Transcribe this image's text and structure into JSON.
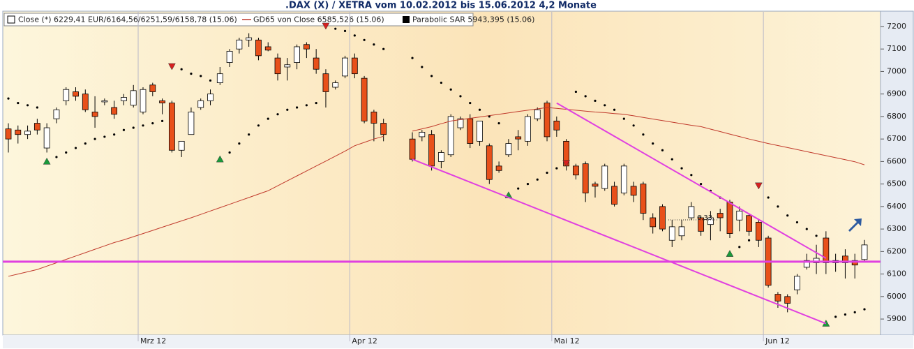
{
  "chart_data": {
    "type": "candlestick",
    "title": ".DAX (X) / XETRA vom 10.02.2012 bis 15.06.2012 4,2 Monate",
    "categories": [
      null,
      null,
      null,
      null,
      null,
      null,
      null,
      null,
      null,
      null,
      null,
      null,
      null,
      null,
      "Mrz 12",
      null,
      null,
      null,
      null,
      null,
      null,
      null,
      null,
      null,
      null,
      null,
      null,
      null,
      null,
      null,
      null,
      null,
      null,
      null,
      null,
      null,
      "Apr 12",
      null,
      null,
      null,
      null,
      null,
      null,
      null,
      null,
      null,
      null,
      null,
      null,
      null,
      null,
      null,
      null,
      null,
      null,
      null,
      null,
      "Mai 12",
      null,
      null,
      null,
      null,
      null,
      null,
      null,
      null,
      null,
      null,
      null,
      null,
      null,
      null,
      null,
      null,
      null,
      null,
      null,
      null,
      null,
      "Jun 12",
      null,
      null,
      null,
      null,
      null,
      null,
      null,
      null,
      null,
      null
    ],
    "series": [
      {
        "name": "Close (*) 6229,41 EUR/6164,56/6251,59/6158,78 (15.06)",
        "up_color": "#ffffff",
        "down_color": "#e8501a",
        "open": [
          6745,
          6740,
          6720,
          6770,
          6660,
          6790,
          6870,
          6910,
          6900,
          6820,
          6865,
          6840,
          6870,
          6850,
          6820,
          6940,
          6870,
          6860,
          6650,
          6720,
          6840,
          6870,
          6950,
          7040,
          7100,
          7140,
          7140,
          7110,
          7060,
          7020,
          7040,
          7120,
          7060,
          6990,
          6930,
          6980,
          7060,
          6970,
          6820,
          6770,
          null,
          null,
          6700,
          6710,
          6720,
          6600,
          6630,
          6750,
          6790,
          6690,
          6670,
          6580,
          6630,
          6710,
          6690,
          6790,
          6860,
          6780,
          6690,
          6580,
          6590,
          6500,
          6480,
          6490,
          6460,
          6490,
          6500,
          6350,
          6400,
          6250,
          6270,
          6350,
          6350,
          6320,
          6370,
          6420,
          6340,
          6360,
          6330,
          6260,
          6010,
          6000,
          6030,
          6130,
          6150,
          6260,
          6150,
          6180,
          6160,
          6164.56
        ],
        "high": [
          6770,
          6760,
          6760,
          6790,
          6770,
          6840,
          6930,
          6930,
          6920,
          6890,
          6880,
          6870,
          6900,
          6940,
          6930,
          6950,
          6880,
          6870,
          6690,
          6840,
          6880,
          6920,
          7020,
          7100,
          7150,
          7170,
          7150,
          7130,
          7080,
          7060,
          7120,
          7130,
          7100,
          7010,
          6960,
          7070,
          7080,
          6980,
          6830,
          6790,
          null,
          null,
          6730,
          6740,
          6740,
          6650,
          6810,
          6800,
          6810,
          6780,
          6680,
          6600,
          6700,
          6740,
          6810,
          6840,
          6870,
          6800,
          6700,
          6590,
          6600,
          6510,
          6590,
          6510,
          6590,
          6510,
          6510,
          6370,
          6410,
          6340,
          6340,
          6420,
          6360,
          6380,
          6390,
          6430,
          6400,
          6370,
          6340,
          6270,
          6020,
          6010,
          6100,
          6190,
          6230,
          6290,
          6190,
          6210,
          6190,
          6251.59
        ],
        "low": [
          6640,
          6680,
          6700,
          6720,
          6640,
          6770,
          6850,
          6870,
          6820,
          6750,
          6850,
          6790,
          6850,
          6840,
          6810,
          6890,
          6810,
          6640,
          6620,
          6720,
          6830,
          6850,
          6940,
          7020,
          7080,
          7110,
          7050,
          7090,
          6960,
          6960,
          7010,
          7060,
          6990,
          6840,
          6920,
          6970,
          6970,
          6770,
          6690,
          6690,
          null,
          null,
          6600,
          6690,
          6560,
          6570,
          6620,
          6740,
          6660,
          6670,
          6500,
          6550,
          6620,
          6650,
          6670,
          6780,
          6690,
          6710,
          6560,
          6520,
          6420,
          6440,
          6470,
          6400,
          6450,
          6420,
          6340,
          6280,
          6290,
          6220,
          6250,
          6340,
          6270,
          6250,
          6290,
          6260,
          6290,
          6270,
          6220,
          6040,
          5950,
          5930,
          6010,
          6120,
          6100,
          6100,
          6110,
          6080,
          6080,
          6158.78
        ],
        "close": [
          6700,
          6720,
          6735,
          6740,
          6750,
          6830,
          6920,
          6890,
          6830,
          6800,
          6870,
          6810,
          6885,
          6915,
          6920,
          6910,
          6860,
          6650,
          6690,
          6820,
          6870,
          6900,
          6990,
          7090,
          7140,
          7150,
          7070,
          7095,
          6990,
          7030,
          7110,
          7100,
          7010,
          6910,
          6950,
          7060,
          6990,
          6780,
          6770,
          6720,
          null,
          null,
          6610,
          6730,
          6580,
          6640,
          6800,
          6790,
          6680,
          6780,
          6520,
          6560,
          6680,
          6700,
          6800,
          6830,
          6710,
          6740,
          6580,
          6540,
          6460,
          6490,
          6580,
          6410,
          6580,
          6450,
          6370,
          6310,
          6300,
          6310,
          6310,
          6400,
          6290,
          6350,
          6350,
          6280,
          6380,
          6290,
          6250,
          6050,
          5980,
          5970,
          6090,
          6160,
          6170,
          6150,
          6160,
          6150,
          6140,
          6229.41
        ]
      },
      {
        "name": "GD65 von Close 6585,526 (15.06)",
        "color": "#c0392b",
        "values": [
          6090,
          6100,
          6110,
          6120,
          6135,
          6150,
          6165,
          6180,
          6195,
          6210,
          6225,
          6240,
          6252,
          6266,
          6280,
          6294,
          6308,
          6322,
          6336,
          6350,
          6365,
          6380,
          6395,
          6410,
          6425,
          6440,
          6455,
          6470,
          6492,
          6514,
          6536,
          6558,
          6580,
          6602,
          6624,
          6646,
          6670,
          6685,
          6700,
          6712,
          null,
          null,
          6735,
          6745,
          6755,
          6768,
          6780,
          6786,
          6792,
          6798,
          6804,
          6810,
          6816,
          6822,
          6828,
          6834,
          6840,
          6836,
          6832,
          6828,
          6824,
          6820,
          6817,
          6813,
          6810,
          6803,
          6796,
          6789,
          6782,
          6775,
          6768,
          6761,
          6755,
          6744,
          6733,
          6722,
          6711,
          6700,
          6690,
          6680,
          6671,
          6662,
          6653,
          6644,
          6635,
          6626,
          6617,
          6608,
          6599,
          6585.526
        ]
      },
      {
        "name": "Parabolic SAR 5943,395 (15.06)",
        "color": "#000000",
        "values": [
          6880,
          6860,
          6850,
          6840,
          6600,
          6620,
          6640,
          6660,
          6680,
          6700,
          6710,
          6720,
          6740,
          6750,
          6760,
          6770,
          6780,
          7020,
          7010,
          6990,
          6980,
          6960,
          6610,
          6640,
          6680,
          6720,
          6760,
          6790,
          6810,
          6830,
          6840,
          6850,
          6860,
          7200,
          7190,
          7180,
          7160,
          7140,
          7120,
          7100,
          null,
          null,
          7060,
          7020,
          6980,
          6950,
          6920,
          6890,
          6860,
          6830,
          6800,
          6770,
          6450,
          6480,
          6500,
          6520,
          6550,
          6570,
          6590,
          6910,
          6890,
          6870,
          6850,
          6830,
          6790,
          6760,
          6720,
          6680,
          6650,
          6610,
          6570,
          6540,
          6500,
          6470,
          6440,
          6190,
          6220,
          6250,
          6490,
          6440,
          6400,
          6360,
          6330,
          6300,
          6270,
          5880,
          5910,
          5920,
          5930,
          5943.395
        ]
      }
    ],
    "ylim": [
      5832,
      7265
    ],
    "yticks": [
      5900,
      6000,
      6100,
      6200,
      6300,
      6400,
      6500,
      6600,
      6700,
      6800,
      6900,
      7000,
      7100,
      7200
    ],
    "hline": 6155,
    "trendline_color": "#e040e0",
    "trendlines": [
      {
        "from": [
          57,
          6860
        ],
        "to": [
          85,
          6170
        ]
      },
      {
        "from": [
          42,
          6610
        ],
        "to": [
          85,
          5880
        ]
      }
    ],
    "annotations": [
      "6.33"
    ]
  }
}
